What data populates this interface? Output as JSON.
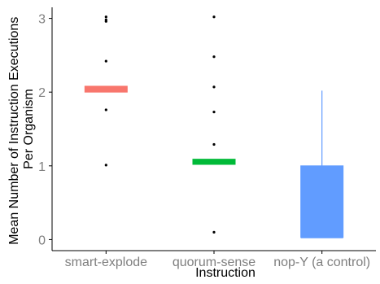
{
  "chart_data": {
    "type": "box",
    "title": "",
    "xlabel": "Instruction",
    "ylabel_line1": "Mean Number of Instruction Executions",
    "ylabel_line2": "Per Organism",
    "ylim": [
      -0.15,
      3.15
    ],
    "yticks": [
      0,
      1,
      2,
      3
    ],
    "grid": false,
    "legend": "none",
    "categories": [
      "smart-explode",
      "quorum-sense",
      "nop-Y (a control)"
    ],
    "boxes": [
      {
        "category": "smart-explode",
        "color": "#F8766D",
        "q1": 2.0,
        "median": 2.03,
        "q3": 2.08,
        "whisker_low": 2.0,
        "whisker_high": 2.08,
        "outliers": [
          3.02,
          2.98,
          2.96,
          2.42,
          1.76,
          1.01
        ]
      },
      {
        "category": "quorum-sense",
        "color": "#00BA38",
        "q1": 1.02,
        "median": 1.05,
        "q3": 1.09,
        "whisker_low": 1.02,
        "whisker_high": 1.09,
        "outliers": [
          3.02,
          2.48,
          2.07,
          1.73,
          1.29,
          0.1
        ]
      },
      {
        "category": "nop-Y (a control)",
        "color": "#619CFF",
        "q1": 0.03,
        "median": 0.03,
        "q3": 1.0,
        "whisker_low": 0.03,
        "whisker_high": 2.02,
        "outliers": []
      }
    ],
    "axis_color": "#000000",
    "tick_label_color": "#7f7f7f"
  }
}
